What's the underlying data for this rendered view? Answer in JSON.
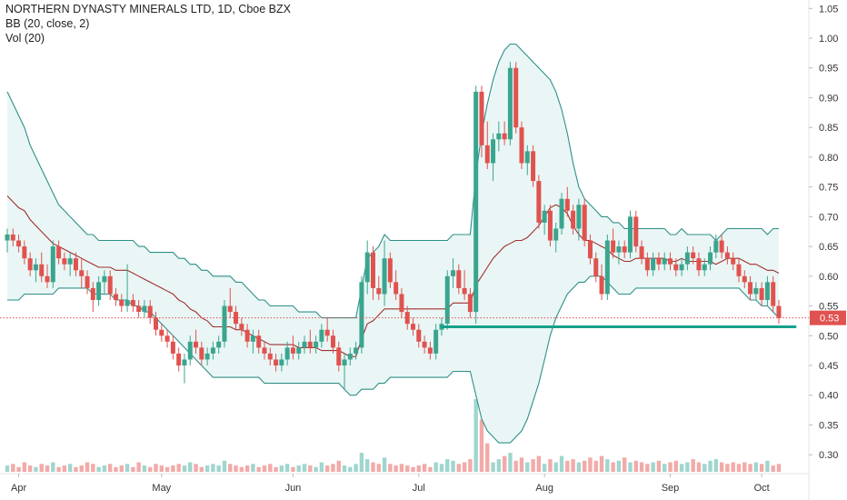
{
  "legend": {
    "symbol": "NORTHERN DYNASTY MINERALS LTD, 1D, Cboe BZX",
    "bb": "BB (20, close, 2)",
    "vol": "Vol (20)"
  },
  "colors": {
    "up": "#3aa58e",
    "down": "#e0524f",
    "bb_band": "#2f8f88",
    "bb_basis": "#a0302e",
    "bb_fill": "#e9f6f5",
    "support": "#16a08b",
    "last_price": "#e0524f",
    "vol_up": "#9fd6cf",
    "vol_down": "#f2aaa8"
  },
  "chart_data": {
    "type": "candlestick",
    "title": "NORTHERN DYNASTY MINERALS LTD, 1D, Cboe BZX",
    "ylim": [
      0.285,
      1.055
    ],
    "y_ticks": [
      "1.05",
      "1.00",
      "0.95",
      "0.90",
      "0.85",
      "0.80",
      "0.75",
      "0.70",
      "0.65",
      "0.60",
      "0.55",
      "0.50",
      "0.45",
      "0.40",
      "0.35",
      "0.30"
    ],
    "x_ticks": [
      "Apr",
      "May",
      "Jun",
      "Jul",
      "Aug",
      "Sep",
      "Oct"
    ],
    "last_price": {
      "label": "0.53",
      "value": 0.53
    },
    "support_line": {
      "from_index": 76,
      "to_index": 135,
      "value": 0.515
    },
    "candles": [
      [
        0.66,
        0.68,
        0.64,
        0.67
      ],
      [
        0.67,
        0.68,
        0.65,
        0.66
      ],
      [
        0.66,
        0.67,
        0.64,
        0.65
      ],
      [
        0.65,
        0.66,
        0.62,
        0.63
      ],
      [
        0.63,
        0.64,
        0.6,
        0.61
      ],
      [
        0.61,
        0.63,
        0.59,
        0.62
      ],
      [
        0.62,
        0.64,
        0.59,
        0.6
      ],
      [
        0.6,
        0.62,
        0.58,
        0.59
      ],
      [
        0.59,
        0.66,
        0.58,
        0.65
      ],
      [
        0.65,
        0.66,
        0.62,
        0.63
      ],
      [
        0.63,
        0.64,
        0.61,
        0.62
      ],
      [
        0.62,
        0.64,
        0.6,
        0.63
      ],
      [
        0.63,
        0.64,
        0.6,
        0.61
      ],
      [
        0.61,
        0.63,
        0.58,
        0.6
      ],
      [
        0.6,
        0.61,
        0.57,
        0.58
      ],
      [
        0.58,
        0.59,
        0.54,
        0.56
      ],
      [
        0.56,
        0.6,
        0.55,
        0.59
      ],
      [
        0.59,
        0.61,
        0.57,
        0.6
      ],
      [
        0.6,
        0.61,
        0.56,
        0.57
      ],
      [
        0.57,
        0.58,
        0.55,
        0.56
      ],
      [
        0.56,
        0.57,
        0.54,
        0.55
      ],
      [
        0.55,
        0.62,
        0.54,
        0.56
      ],
      [
        0.56,
        0.57,
        0.54,
        0.55
      ],
      [
        0.55,
        0.56,
        0.53,
        0.54
      ],
      [
        0.54,
        0.56,
        0.53,
        0.55
      ],
      [
        0.55,
        0.56,
        0.52,
        0.53
      ],
      [
        0.53,
        0.54,
        0.5,
        0.51
      ],
      [
        0.51,
        0.52,
        0.49,
        0.5
      ],
      [
        0.5,
        0.51,
        0.48,
        0.49
      ],
      [
        0.49,
        0.5,
        0.46,
        0.47
      ],
      [
        0.47,
        0.48,
        0.44,
        0.45
      ],
      [
        0.45,
        0.47,
        0.42,
        0.46
      ],
      [
        0.46,
        0.5,
        0.45,
        0.49
      ],
      [
        0.49,
        0.51,
        0.47,
        0.48
      ],
      [
        0.48,
        0.49,
        0.45,
        0.46
      ],
      [
        0.46,
        0.48,
        0.45,
        0.47
      ],
      [
        0.47,
        0.49,
        0.46,
        0.48
      ],
      [
        0.48,
        0.5,
        0.47,
        0.49
      ],
      [
        0.49,
        0.56,
        0.48,
        0.55
      ],
      [
        0.55,
        0.58,
        0.53,
        0.54
      ],
      [
        0.54,
        0.55,
        0.51,
        0.52
      ],
      [
        0.52,
        0.53,
        0.5,
        0.51
      ],
      [
        0.51,
        0.52,
        0.48,
        0.49
      ],
      [
        0.49,
        0.51,
        0.47,
        0.5
      ],
      [
        0.5,
        0.51,
        0.47,
        0.48
      ],
      [
        0.48,
        0.49,
        0.46,
        0.47
      ],
      [
        0.47,
        0.48,
        0.45,
        0.46
      ],
      [
        0.46,
        0.47,
        0.44,
        0.45
      ],
      [
        0.45,
        0.47,
        0.44,
        0.46
      ],
      [
        0.46,
        0.49,
        0.45,
        0.48
      ],
      [
        0.48,
        0.5,
        0.46,
        0.47
      ],
      [
        0.47,
        0.49,
        0.46,
        0.48
      ],
      [
        0.48,
        0.5,
        0.47,
        0.49
      ],
      [
        0.49,
        0.51,
        0.47,
        0.48
      ],
      [
        0.48,
        0.5,
        0.47,
        0.49
      ],
      [
        0.49,
        0.52,
        0.48,
        0.51
      ],
      [
        0.51,
        0.53,
        0.49,
        0.5
      ],
      [
        0.5,
        0.51,
        0.47,
        0.48
      ],
      [
        0.48,
        0.49,
        0.44,
        0.45
      ],
      [
        0.45,
        0.47,
        0.41,
        0.46
      ],
      [
        0.46,
        0.48,
        0.45,
        0.47
      ],
      [
        0.47,
        0.49,
        0.46,
        0.48
      ],
      [
        0.48,
        0.6,
        0.47,
        0.59
      ],
      [
        0.59,
        0.66,
        0.57,
        0.64
      ],
      [
        0.64,
        0.65,
        0.56,
        0.58
      ],
      [
        0.58,
        0.6,
        0.56,
        0.57
      ],
      [
        0.57,
        0.66,
        0.55,
        0.63
      ],
      [
        0.63,
        0.64,
        0.58,
        0.59
      ],
      [
        0.59,
        0.61,
        0.56,
        0.57
      ],
      [
        0.57,
        0.58,
        0.53,
        0.54
      ],
      [
        0.54,
        0.55,
        0.51,
        0.52
      ],
      [
        0.52,
        0.53,
        0.5,
        0.51
      ],
      [
        0.51,
        0.52,
        0.48,
        0.49
      ],
      [
        0.49,
        0.5,
        0.47,
        0.48
      ],
      [
        0.48,
        0.49,
        0.46,
        0.47
      ],
      [
        0.47,
        0.52,
        0.46,
        0.51
      ],
      [
        0.51,
        0.53,
        0.5,
        0.52
      ],
      [
        0.52,
        0.61,
        0.51,
        0.6
      ],
      [
        0.6,
        0.63,
        0.58,
        0.61
      ],
      [
        0.61,
        0.62,
        0.57,
        0.58
      ],
      [
        0.58,
        0.61,
        0.56,
        0.57
      ],
      [
        0.57,
        0.58,
        0.53,
        0.54
      ],
      [
        0.54,
        0.92,
        0.52,
        0.91
      ],
      [
        0.91,
        0.92,
        0.8,
        0.82
      ],
      [
        0.82,
        0.86,
        0.78,
        0.79
      ],
      [
        0.79,
        0.84,
        0.76,
        0.83
      ],
      [
        0.83,
        0.86,
        0.81,
        0.84
      ],
      [
        0.84,
        0.86,
        0.82,
        0.83
      ],
      [
        0.83,
        0.96,
        0.82,
        0.95
      ],
      [
        0.95,
        0.96,
        0.84,
        0.85
      ],
      [
        0.85,
        0.86,
        0.78,
        0.79
      ],
      [
        0.79,
        0.82,
        0.77,
        0.81
      ],
      [
        0.81,
        0.82,
        0.75,
        0.76
      ],
      [
        0.76,
        0.77,
        0.68,
        0.69
      ],
      [
        0.69,
        0.72,
        0.67,
        0.71
      ],
      [
        0.71,
        0.72,
        0.65,
        0.66
      ],
      [
        0.66,
        0.69,
        0.64,
        0.68
      ],
      [
        0.68,
        0.74,
        0.67,
        0.73
      ],
      [
        0.73,
        0.75,
        0.7,
        0.71
      ],
      [
        0.71,
        0.72,
        0.67,
        0.68
      ],
      [
        0.68,
        0.73,
        0.66,
        0.72
      ],
      [
        0.72,
        0.73,
        0.65,
        0.66
      ],
      [
        0.66,
        0.67,
        0.62,
        0.63
      ],
      [
        0.63,
        0.64,
        0.59,
        0.6
      ],
      [
        0.6,
        0.62,
        0.56,
        0.57
      ],
      [
        0.57,
        0.67,
        0.56,
        0.66
      ],
      [
        0.66,
        0.68,
        0.63,
        0.64
      ],
      [
        0.64,
        0.66,
        0.62,
        0.65
      ],
      [
        0.65,
        0.66,
        0.63,
        0.64
      ],
      [
        0.64,
        0.71,
        0.63,
        0.7
      ],
      [
        0.7,
        0.71,
        0.64,
        0.65
      ],
      [
        0.65,
        0.66,
        0.62,
        0.63
      ],
      [
        0.63,
        0.64,
        0.6,
        0.61
      ],
      [
        0.61,
        0.64,
        0.6,
        0.63
      ],
      [
        0.63,
        0.64,
        0.61,
        0.62
      ],
      [
        0.62,
        0.64,
        0.61,
        0.63
      ],
      [
        0.63,
        0.64,
        0.61,
        0.62
      ],
      [
        0.62,
        0.63,
        0.6,
        0.61
      ],
      [
        0.61,
        0.63,
        0.6,
        0.62
      ],
      [
        0.62,
        0.65,
        0.61,
        0.64
      ],
      [
        0.64,
        0.65,
        0.62,
        0.63
      ],
      [
        0.63,
        0.64,
        0.6,
        0.61
      ],
      [
        0.61,
        0.63,
        0.6,
        0.62
      ],
      [
        0.62,
        0.65,
        0.61,
        0.64
      ],
      [
        0.64,
        0.67,
        0.63,
        0.66
      ],
      [
        0.66,
        0.67,
        0.63,
        0.64
      ],
      [
        0.64,
        0.65,
        0.62,
        0.63
      ],
      [
        0.63,
        0.64,
        0.61,
        0.62
      ],
      [
        0.62,
        0.63,
        0.59,
        0.6
      ],
      [
        0.6,
        0.61,
        0.58,
        0.59
      ],
      [
        0.59,
        0.6,
        0.56,
        0.57
      ],
      [
        0.57,
        0.59,
        0.56,
        0.58
      ],
      [
        0.58,
        0.59,
        0.55,
        0.56
      ],
      [
        0.56,
        0.6,
        0.55,
        0.59
      ],
      [
        0.59,
        0.6,
        0.54,
        0.55
      ],
      [
        0.55,
        0.56,
        0.52,
        0.53
      ]
    ],
    "volume": [
      4,
      5,
      3,
      6,
      4,
      3,
      5,
      4,
      6,
      3,
      4,
      5,
      3,
      4,
      6,
      5,
      3,
      4,
      5,
      3,
      4,
      5,
      3,
      6,
      4,
      3,
      5,
      4,
      3,
      4,
      5,
      4,
      6,
      5,
      3,
      4,
      5,
      4,
      7,
      5,
      4,
      3,
      4,
      5,
      3,
      4,
      5,
      3,
      4,
      5,
      3,
      4,
      5,
      4,
      3,
      6,
      4,
      5,
      7,
      4,
      3,
      5,
      12,
      8,
      6,
      5,
      9,
      5,
      4,
      5,
      4,
      3,
      4,
      5,
      3,
      6,
      5,
      8,
      7,
      5,
      6,
      8,
      46,
      33,
      18,
      6,
      8,
      10,
      12,
      7,
      9,
      6,
      8,
      10,
      5,
      8,
      6,
      10,
      7,
      8,
      6,
      7,
      9,
      7,
      10,
      8,
      6,
      7,
      9,
      6,
      7,
      6,
      5,
      6,
      7,
      5,
      6,
      7,
      5,
      6,
      8,
      6,
      5,
      7,
      8,
      6,
      5,
      6,
      5,
      6,
      5,
      6,
      5,
      7,
      4,
      5
    ],
    "bb_upper": [
      0.91,
      0.89,
      0.87,
      0.85,
      0.82,
      0.8,
      0.78,
      0.76,
      0.74,
      0.72,
      0.71,
      0.7,
      0.69,
      0.68,
      0.67,
      0.67,
      0.66,
      0.66,
      0.66,
      0.66,
      0.66,
      0.66,
      0.66,
      0.65,
      0.65,
      0.64,
      0.64,
      0.64,
      0.64,
      0.64,
      0.63,
      0.63,
      0.62,
      0.62,
      0.61,
      0.61,
      0.6,
      0.6,
      0.6,
      0.6,
      0.59,
      0.59,
      0.58,
      0.57,
      0.56,
      0.56,
      0.55,
      0.55,
      0.55,
      0.55,
      0.55,
      0.54,
      0.54,
      0.54,
      0.54,
      0.53,
      0.53,
      0.53,
      0.53,
      0.53,
      0.53,
      0.53,
      0.58,
      0.63,
      0.64,
      0.65,
      0.67,
      0.66,
      0.66,
      0.66,
      0.66,
      0.66,
      0.66,
      0.66,
      0.66,
      0.66,
      0.66,
      0.66,
      0.67,
      0.67,
      0.67,
      0.67,
      0.77,
      0.84,
      0.89,
      0.93,
      0.96,
      0.98,
      0.99,
      0.99,
      0.98,
      0.97,
      0.96,
      0.95,
      0.94,
      0.93,
      0.91,
      0.88,
      0.84,
      0.79,
      0.75,
      0.73,
      0.72,
      0.71,
      0.7,
      0.7,
      0.69,
      0.69,
      0.68,
      0.68,
      0.68,
      0.68,
      0.68,
      0.68,
      0.68,
      0.68,
      0.67,
      0.67,
      0.68,
      0.67,
      0.67,
      0.67,
      0.67,
      0.67,
      0.66,
      0.67,
      0.68,
      0.68,
      0.68,
      0.68,
      0.68,
      0.68,
      0.68,
      0.67,
      0.68,
      0.68
    ],
    "bb_lower": [
      0.56,
      0.56,
      0.56,
      0.57,
      0.57,
      0.57,
      0.57,
      0.57,
      0.57,
      0.58,
      0.58,
      0.58,
      0.58,
      0.58,
      0.58,
      0.57,
      0.57,
      0.57,
      0.57,
      0.56,
      0.56,
      0.56,
      0.55,
      0.55,
      0.54,
      0.54,
      0.53,
      0.52,
      0.51,
      0.5,
      0.49,
      0.48,
      0.47,
      0.46,
      0.45,
      0.44,
      0.43,
      0.43,
      0.43,
      0.43,
      0.43,
      0.43,
      0.43,
      0.43,
      0.43,
      0.42,
      0.42,
      0.42,
      0.42,
      0.42,
      0.42,
      0.42,
      0.42,
      0.42,
      0.42,
      0.42,
      0.42,
      0.42,
      0.42,
      0.41,
      0.4,
      0.4,
      0.41,
      0.41,
      0.41,
      0.42,
      0.42,
      0.43,
      0.43,
      0.43,
      0.43,
      0.43,
      0.43,
      0.43,
      0.43,
      0.43,
      0.43,
      0.43,
      0.44,
      0.44,
      0.44,
      0.44,
      0.4,
      0.36,
      0.34,
      0.33,
      0.32,
      0.32,
      0.32,
      0.33,
      0.34,
      0.36,
      0.39,
      0.42,
      0.46,
      0.5,
      0.53,
      0.55,
      0.57,
      0.58,
      0.59,
      0.59,
      0.6,
      0.6,
      0.6,
      0.59,
      0.58,
      0.57,
      0.57,
      0.57,
      0.58,
      0.58,
      0.58,
      0.58,
      0.58,
      0.58,
      0.58,
      0.58,
      0.58,
      0.58,
      0.58,
      0.58,
      0.58,
      0.58,
      0.58,
      0.58,
      0.58,
      0.58,
      0.58,
      0.57,
      0.56,
      0.56,
      0.55,
      0.55,
      0.54,
      0.53
    ]
  }
}
